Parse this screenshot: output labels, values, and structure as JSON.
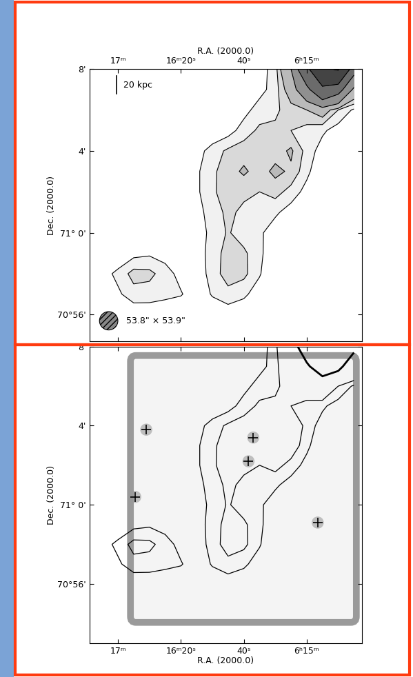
{
  "chart_data": [
    {
      "type": "contour",
      "fill": true,
      "x_label": "R.A. (2000.0)",
      "y_label": "Dec. (2000.0)",
      "xlim": [
        1038,
        865
      ],
      "ylim": [
        -5.3,
        8
      ],
      "xticks": [
        {
          "value": 1020,
          "label": "17ᵐ"
        },
        {
          "value": 980,
          "label": "16ᵐ20ˢ"
        },
        {
          "value": 940,
          "label": "40ˢ"
        },
        {
          "value": 900,
          "label": "6ʰ15ᵐ"
        }
      ],
      "yticks": [
        {
          "value": 8,
          "label": "8'"
        },
        {
          "value": 4,
          "label": "4'"
        },
        {
          "value": 0,
          "label": "71° 0'"
        },
        {
          "value": -4,
          "label": "70°56'"
        }
      ],
      "levels": [
        1,
        2,
        3,
        6,
        12,
        24,
        48
      ],
      "scale_bar": {
        "label": "20 kpc",
        "length_arcmin": 0.85
      },
      "beam": {
        "major_arcsec": 53.8,
        "minor_arcsec": 53.9,
        "label": "53.8\" × 53.9\""
      }
    },
    {
      "type": "contour",
      "fill": false,
      "x_label": "R.A. (2000.0)",
      "y_label": "Dec. (2000.0)",
      "xlim": [
        1038,
        865
      ],
      "ylim": [
        -7,
        8
      ],
      "xticks": [
        {
          "value": 1020,
          "label": "17ᵐ"
        },
        {
          "value": 980,
          "label": "16ᵐ20ˢ"
        },
        {
          "value": 940,
          "label": "40ˢ"
        },
        {
          "value": 900,
          "label": "6ʰ15ᵐ"
        }
      ],
      "yticks": [
        {
          "value": 8,
          "label": "8'"
        },
        {
          "value": 4,
          "label": "4'"
        },
        {
          "value": 0,
          "label": "71° 0'"
        },
        {
          "value": -4,
          "label": "70°56'"
        }
      ],
      "levels": [
        1,
        2,
        12
      ],
      "optical_sources": {
        "x": [
          1002,
          937,
          893,
          1009,
          934
        ],
        "y": [
          3.8,
          2.2,
          -0.9,
          0.4,
          3.4
        ]
      }
    }
  ],
  "radio_map": {
    "x": [
      1030,
      1020,
      1010,
      1000,
      990,
      980,
      970,
      960,
      950,
      940,
      930,
      920,
      910,
      900,
      890,
      880,
      870
    ],
    "y": [
      8,
      7,
      6,
      5,
      4,
      3,
      2,
      1,
      0,
      -1,
      -2,
      -3,
      -4,
      -5,
      -6
    ],
    "cells": [
      [
        0,
        0,
        0,
        0,
        0,
        0,
        0,
        0,
        0,
        0,
        0.5,
        1.5,
        6,
        20,
        45,
        50,
        15
      ],
      [
        0,
        0,
        0,
        0,
        0,
        0,
        0,
        0,
        0,
        0,
        0.6,
        1.5,
        4,
        10,
        20,
        15,
        5
      ],
      [
        0,
        0,
        0,
        0,
        0,
        0,
        0,
        0,
        0,
        0.6,
        1.5,
        1.8,
        2.5,
        3,
        4,
        2,
        0.8
      ],
      [
        0,
        0,
        0,
        0,
        0,
        0,
        0,
        0,
        0.5,
        1.5,
        2.2,
        2.2,
        2,
        1.6,
        1.2,
        0.5,
        0
      ],
      [
        0,
        0,
        0,
        0,
        0,
        0,
        0.5,
        1.5,
        2.2,
        2.5,
        2.2,
        2.5,
        3.2,
        1.6,
        0.5,
        0,
        0
      ],
      [
        0,
        0,
        0,
        0,
        0,
        0,
        0.8,
        1.8,
        2.5,
        3.2,
        2.5,
        3.3,
        2.8,
        1.3,
        0,
        0,
        0
      ],
      [
        0,
        0,
        0,
        0,
        0,
        0,
        0.8,
        1.8,
        2.6,
        2.2,
        2.0,
        2.4,
        1.6,
        0.6,
        0,
        0,
        0
      ],
      [
        0,
        0,
        0,
        0,
        0,
        0,
        0.5,
        1.6,
        2.2,
        1.8,
        1.4,
        1.2,
        0.5,
        0,
        0,
        0,
        0
      ],
      [
        0,
        0,
        0,
        0,
        0,
        0,
        0.3,
        1.4,
        2.1,
        1.5,
        1.2,
        0.4,
        0,
        0,
        0,
        0,
        0
      ],
      [
        0,
        0,
        0.6,
        0.8,
        0.5,
        0,
        0.4,
        1.5,
        2.4,
        2.2,
        1.3,
        0,
        0,
        0,
        0,
        0,
        0
      ],
      [
        0.5,
        1.3,
        2.4,
        2.3,
        1.5,
        0.6,
        0.4,
        1.4,
        2.6,
        2.3,
        1.1,
        0,
        0,
        0,
        0,
        0,
        0
      ],
      [
        0,
        0.8,
        1.6,
        1.5,
        1.3,
        1.1,
        0.3,
        1.1,
        1.6,
        1.2,
        0.5,
        0,
        0,
        0,
        0,
        0,
        0
      ],
      [
        0,
        0,
        0.2,
        0.3,
        0.2,
        0,
        0,
        0.3,
        0.4,
        0.3,
        0,
        0,
        0,
        0,
        0,
        0,
        0
      ],
      [
        0,
        0,
        0,
        0,
        0,
        0,
        0,
        0,
        0,
        0,
        0,
        0,
        0,
        0,
        0,
        0,
        0
      ],
      [
        0,
        0,
        0,
        0,
        0,
        0,
        0,
        0,
        0,
        0,
        0,
        0,
        0,
        0,
        0,
        0,
        0
      ]
    ]
  }
}
